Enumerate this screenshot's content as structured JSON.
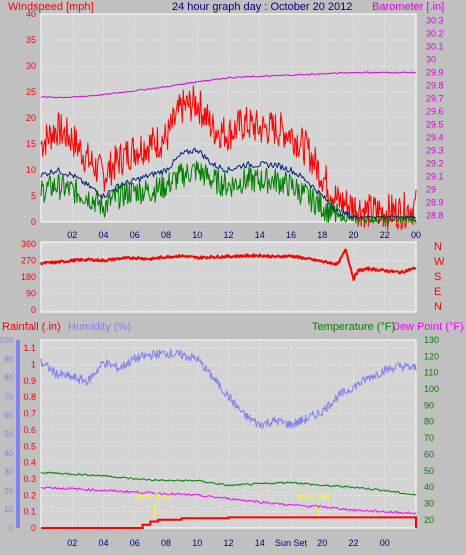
{
  "title": "24 hour graph day : October 20 2012",
  "colors": {
    "bg": "#c0c0c0",
    "plot_bg": "#d4d4d4",
    "border": "#ffffff",
    "wind_gust": "#ff0000",
    "wind_avg": "#002080",
    "wind_speed": "#008000",
    "barometer": "#dd00dd",
    "direction": "#ff0000",
    "rain": "#ff0000",
    "humidity": "#8080ee",
    "temperature": "#008000",
    "dew_point": "#ff00ff",
    "sun": "#ffff00",
    "tick_text": "#000080"
  },
  "chart_data": [
    {
      "type": "line",
      "name": "wind-baro",
      "x_tick_labels": [
        "02",
        "04",
        "06",
        "08",
        "10",
        "12",
        "14",
        "16",
        "18",
        "20",
        "22",
        "00"
      ],
      "left_axis": {
        "label": "Windspeed [mph]",
        "ticks": [
          0,
          5,
          10,
          15,
          20,
          25,
          30,
          35,
          40
        ],
        "ylim": [
          0,
          40
        ]
      },
      "right_axis": {
        "label": "Barometer [.in]",
        "ticks": [
          "28.8",
          "28.9",
          "29",
          "29.1",
          "29.2",
          "29.3",
          "29.4",
          "29.5",
          "29.6",
          "29.7",
          "29.8",
          "29.9",
          "30",
          "30.1",
          "30.2",
          "30.3"
        ],
        "ylim": [
          28.75,
          30.35
        ]
      },
      "series": [
        {
          "name": "gust",
          "axis": "left",
          "x": [
            0,
            1,
            2,
            3,
            4,
            5,
            6,
            7,
            8,
            9,
            10,
            11,
            12,
            13,
            14,
            15,
            16,
            17,
            18,
            19,
            20,
            21,
            22,
            23,
            24
          ],
          "values": [
            15,
            18,
            16,
            12,
            9,
            12,
            14,
            15,
            16,
            22,
            23,
            18,
            17,
            19,
            18,
            18,
            17,
            14,
            9,
            4,
            3,
            2,
            2,
            2,
            3
          ]
        },
        {
          "name": "average",
          "axis": "left",
          "x": [
            0,
            1,
            2,
            3,
            4,
            5,
            6,
            7,
            8,
            9,
            10,
            11,
            12,
            13,
            14,
            15,
            16,
            17,
            18,
            19,
            20,
            21,
            22,
            23,
            24
          ],
          "values": [
            9,
            10,
            9,
            7,
            5,
            7,
            8,
            9,
            10,
            13,
            14,
            11,
            10,
            11,
            11,
            11,
            10,
            8,
            5,
            2,
            1,
            1,
            1,
            1,
            1
          ]
        },
        {
          "name": "speed",
          "axis": "left",
          "x": [
            0,
            1,
            2,
            3,
            4,
            5,
            6,
            7,
            8,
            9,
            10,
            11,
            12,
            13,
            14,
            15,
            16,
            17,
            18,
            19,
            20,
            21,
            22,
            23,
            24
          ],
          "values": [
            6,
            7,
            6,
            5,
            3,
            5,
            6,
            6,
            7,
            9,
            10,
            8,
            7,
            8,
            8,
            8,
            7,
            5,
            3,
            1,
            0.5,
            0.5,
            0.5,
            0.5,
            0.5
          ]
        },
        {
          "name": "barometer",
          "axis": "right",
          "x": [
            0,
            2,
            4,
            6,
            8,
            10,
            12,
            14,
            16,
            18,
            20,
            22,
            24
          ],
          "values": [
            29.71,
            29.71,
            29.73,
            29.76,
            29.79,
            29.83,
            29.86,
            29.87,
            29.88,
            29.89,
            29.9,
            29.9,
            29.9
          ]
        }
      ]
    },
    {
      "type": "line",
      "name": "direction",
      "y_tick_labels": [
        "360",
        "270",
        "180",
        "90",
        "0"
      ],
      "right_labels": [
        "N",
        "W",
        "S",
        "E",
        "N"
      ],
      "ylim": [
        0,
        360
      ],
      "series": [
        {
          "name": "direction",
          "x": [
            0,
            1,
            2,
            3,
            4,
            5,
            6,
            7,
            8,
            9,
            10,
            11,
            12,
            13,
            14,
            15,
            16,
            17,
            18,
            19,
            19.5,
            20,
            20.3,
            21,
            22,
            23,
            24
          ],
          "values": [
            255,
            260,
            270,
            275,
            270,
            280,
            285,
            278,
            290,
            295,
            285,
            290,
            292,
            295,
            298,
            290,
            295,
            280,
            265,
            250,
            330,
            170,
            215,
            225,
            215,
            205,
            230
          ]
        }
      ]
    },
    {
      "type": "line",
      "name": "rain-hum-temp",
      "x_tick_labels": [
        "02",
        "04",
        "06",
        "08",
        "10",
        "12",
        "14",
        "Sun Set",
        "20",
        "22",
        "00"
      ],
      "left_axis": {
        "label": "Rainfall (.in)",
        "ticks": [
          "0",
          "0.1",
          "0.2",
          "0.3",
          "0.4",
          "0.5",
          "0.6",
          "0.7",
          "0.8",
          "0.9",
          "1",
          "1.1"
        ],
        "ylim": [
          0,
          1.15
        ]
      },
      "humidity_axis": {
        "label": "Humidity (%)",
        "ticks": [
          0,
          10,
          20,
          30,
          40,
          50,
          60,
          70,
          80,
          90,
          100
        ],
        "ylim": [
          0,
          100
        ]
      },
      "right_axis": {
        "label": "Temperature (°F)",
        "ticks": [
          20,
          30,
          40,
          50,
          60,
          70,
          80,
          90,
          100,
          110,
          120,
          130
        ],
        "ylim": [
          15,
          130
        ]
      },
      "right_axis_label2": "Dew Point (°F)",
      "annotations": [
        "Sun Rise",
        "Sun Set"
      ],
      "series": [
        {
          "name": "rain",
          "axis": "left",
          "x": [
            0,
            6,
            6.5,
            7,
            7.5,
            9,
            10,
            12,
            16,
            20,
            23.5,
            24
          ],
          "values": [
            0,
            0,
            0.02,
            0.04,
            0.05,
            0.06,
            0.06,
            0.065,
            0.065,
            0.065,
            0.065,
            0
          ]
        },
        {
          "name": "humidity",
          "axis": "humidity",
          "x": [
            0,
            1,
            2,
            3,
            4,
            5,
            6,
            7,
            8,
            9,
            10,
            11,
            12,
            13,
            14,
            15,
            16,
            17,
            18,
            19,
            20,
            21,
            22,
            23,
            24
          ],
          "values": [
            88,
            82,
            80,
            78,
            88,
            85,
            90,
            92,
            93,
            92,
            90,
            80,
            70,
            60,
            55,
            57,
            55,
            58,
            62,
            70,
            75,
            80,
            84,
            86,
            85
          ]
        },
        {
          "name": "temperature",
          "axis": "right",
          "x": [
            0,
            2,
            4,
            6,
            8,
            10,
            12,
            14,
            16,
            18,
            20,
            22,
            24
          ],
          "values": [
            49,
            48,
            47,
            45,
            44,
            44,
            41,
            42,
            43,
            41,
            40,
            38,
            35
          ]
        },
        {
          "name": "dew point",
          "axis": "right",
          "x": [
            0,
            2,
            4,
            6,
            8,
            10,
            12,
            14,
            16,
            18,
            20,
            22,
            24
          ],
          "values": [
            40,
            39,
            38,
            37,
            36,
            35,
            33,
            31,
            29,
            28,
            26,
            25,
            24
          ]
        }
      ]
    }
  ]
}
